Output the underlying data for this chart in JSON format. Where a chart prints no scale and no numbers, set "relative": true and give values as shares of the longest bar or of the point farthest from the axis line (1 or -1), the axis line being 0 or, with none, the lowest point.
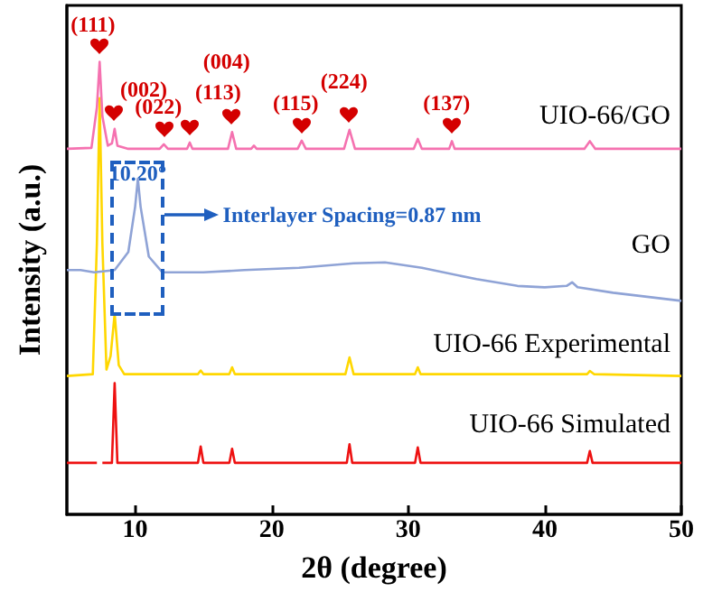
{
  "chart_data": {
    "type": "line",
    "relative": true,
    "xlabel": "2θ (degree)",
    "ylabel": "Intensity (a.u.)",
    "xlim": [
      5,
      50
    ],
    "xticks": [
      10,
      20,
      30,
      40,
      50
    ],
    "series": [
      {
        "name": "UIO-66 Simulated",
        "color": "#ee1111",
        "x": [
          5,
          7.2,
          7.4,
          7.6,
          8.3,
          8.5,
          8.7,
          14.6,
          14.8,
          15,
          16.9,
          17.1,
          17.3,
          25.5,
          25.7,
          25.9,
          30.5,
          30.7,
          30.9,
          43.1,
          43.3,
          43.5,
          50
        ],
        "values": [
          0.114,
          0.114,
          null,
          0.114,
          0.114,
          0.29,
          0.114,
          0.114,
          0.15,
          0.114,
          0.114,
          0.145,
          0.114,
          0.114,
          0.155,
          0.114,
          0.114,
          0.148,
          0.114,
          0.114,
          0.14,
          0.114,
          0.114
        ]
      },
      {
        "name": "UIO-66 Experimental",
        "color": "#ffd700",
        "x": [
          5,
          6.9,
          7.2,
          7.4,
          7.6,
          7.9,
          8.2,
          8.5,
          8.8,
          9.2,
          14.6,
          14.8,
          15,
          16.9,
          17.1,
          17.3,
          25.4,
          25.7,
          26.0,
          30.5,
          30.7,
          30.9,
          43.1,
          43.3,
          43.6,
          50
        ],
        "values": [
          0.306,
          0.31,
          0.6,
          0.92,
          0.6,
          0.32,
          0.35,
          0.443,
          0.33,
          0.31,
          0.31,
          0.318,
          0.31,
          0.31,
          0.325,
          0.31,
          0.31,
          0.347,
          0.31,
          0.31,
          0.325,
          0.31,
          0.31,
          0.317,
          0.31,
          0.306
        ]
      },
      {
        "name": "GO",
        "color": "#8fa3d6",
        "x": [
          5,
          6,
          7,
          8.5,
          9.5,
          10.0,
          10.2,
          10.4,
          11,
          12,
          15,
          18,
          22,
          26,
          28.3,
          31,
          35,
          38,
          40,
          41.6,
          42,
          42.4,
          45,
          50
        ],
        "values": [
          0.54,
          0.54,
          0.535,
          0.54,
          0.58,
          0.68,
          0.742,
          0.68,
          0.57,
          0.535,
          0.535,
          0.54,
          0.545,
          0.555,
          0.557,
          0.545,
          0.52,
          0.505,
          0.502,
          0.505,
          0.513,
          0.502,
          0.49,
          0.472
        ]
      },
      {
        "name": "UIO-66/GO",
        "color": "#f572b0",
        "x": [
          5,
          6.8,
          7.2,
          7.4,
          7.6,
          8.0,
          8.3,
          8.5,
          8.7,
          9.5,
          11.8,
          12.1,
          12.4,
          13.8,
          14.0,
          14.2,
          16.8,
          17.1,
          17.4,
          18.5,
          18.7,
          18.9,
          21.9,
          22.2,
          22.5,
          25.3,
          25.7,
          26.1,
          28.0,
          30.4,
          30.7,
          31.0,
          33.0,
          33.2,
          33.4,
          37.0,
          42.9,
          43.3,
          43.7,
          45,
          50
        ],
        "values": [
          0.808,
          0.81,
          0.9,
          1.0,
          0.88,
          0.815,
          0.82,
          0.852,
          0.815,
          0.808,
          0.808,
          0.818,
          0.808,
          0.808,
          0.822,
          0.808,
          0.808,
          0.845,
          0.808,
          0.808,
          0.815,
          0.808,
          0.808,
          0.826,
          0.808,
          0.808,
          0.85,
          0.808,
          0.808,
          0.808,
          0.83,
          0.808,
          0.808,
          0.825,
          0.808,
          0.808,
          0.808,
          0.825,
          0.808,
          0.808,
          0.808
        ]
      }
    ],
    "annotations": [
      {
        "text": "(111)",
        "x": 7.4,
        "y": 1.0
      },
      {
        "text": "(002)",
        "x": 8.5,
        "y": 0.852
      },
      {
        "text": "(022)",
        "x": 12.1,
        "y": 0.818
      },
      {
        "text": "(113)",
        "x": 14.0,
        "y": 0.822
      },
      {
        "text": "(004)",
        "x": 17.1,
        "y": 0.845
      },
      {
        "text": "(115)",
        "x": 22.2,
        "y": 0.826
      },
      {
        "text": "(224)",
        "x": 25.7,
        "y": 0.85
      },
      {
        "text": "(137)",
        "x": 33.2,
        "y": 0.825
      },
      {
        "text": "10.20°",
        "x": 10.2,
        "y": 0.742
      },
      "Interlayer Spacing=0.87 nm"
    ]
  }
}
